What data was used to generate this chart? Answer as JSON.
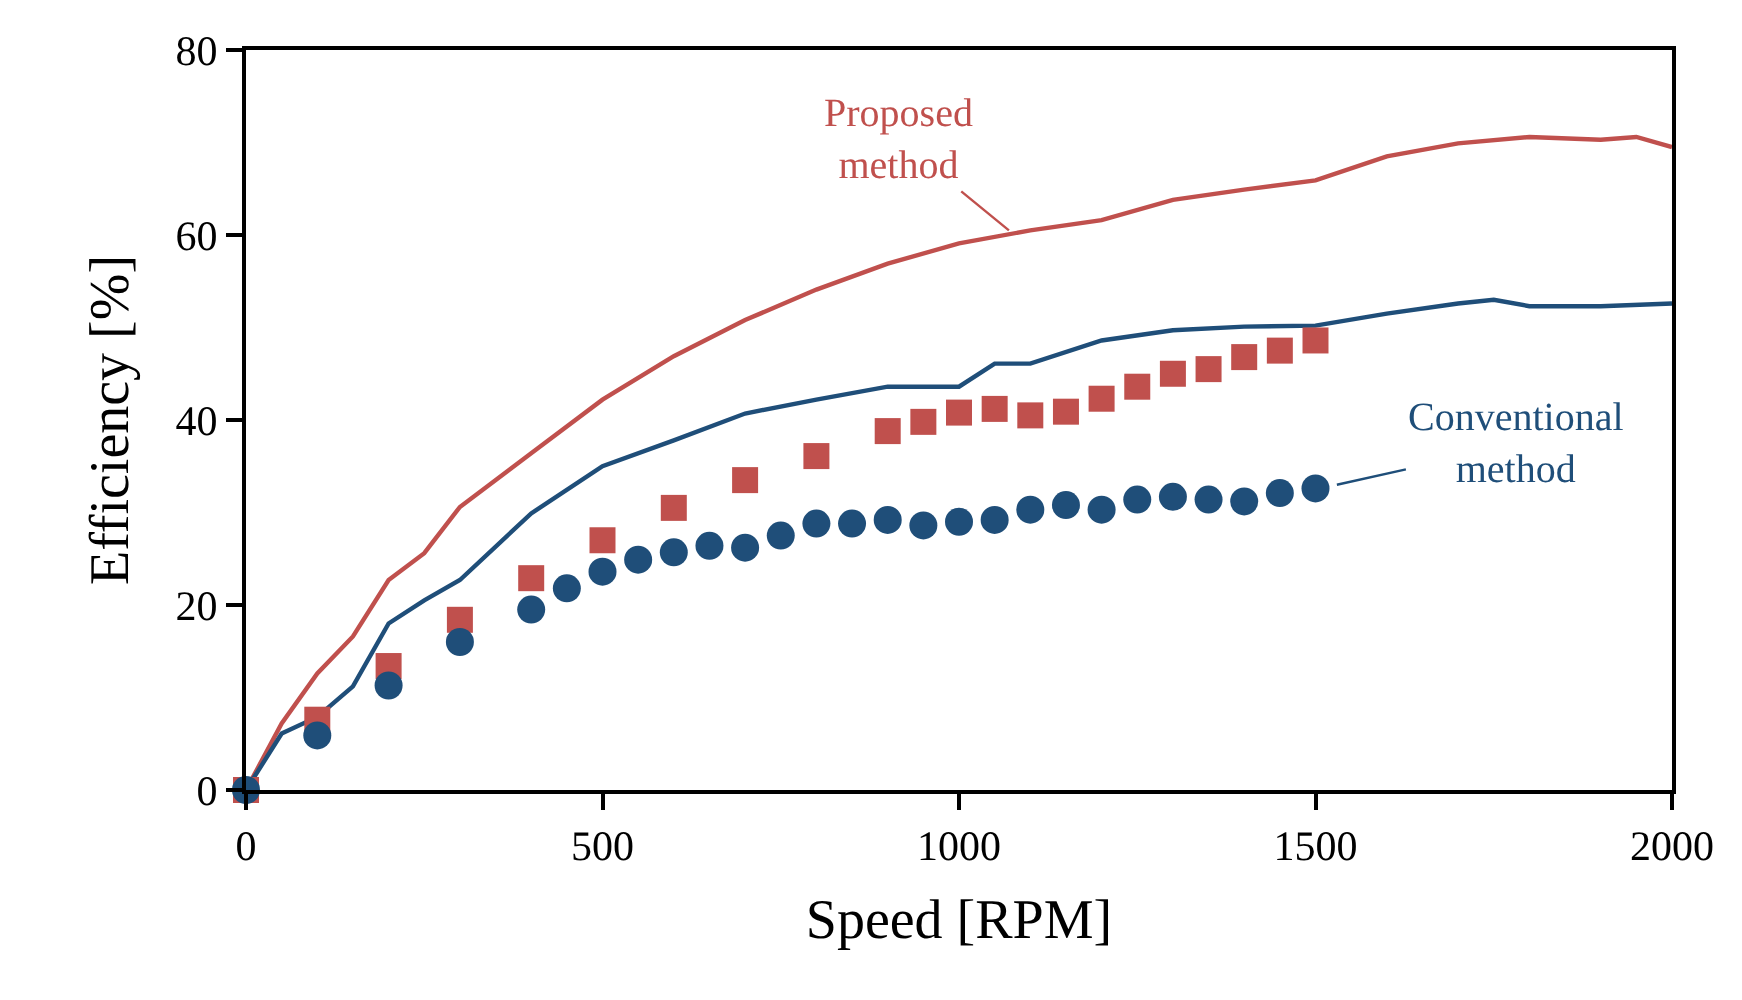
{
  "chart_data": {
    "type": "line",
    "xlabel": "Speed [RPM]",
    "ylabel": "Efficiency [%]",
    "xlim": [
      0,
      2000
    ],
    "xticks": [
      0,
      500,
      1000,
      1500,
      2000
    ],
    "ylim": [
      0,
      80
    ],
    "yticks": [
      0,
      20,
      40,
      60,
      80
    ],
    "series": [
      {
        "marker": "none",
        "line_style": "solid",
        "color": "#c0504d",
        "x": [
          0,
          50,
          100,
          150,
          200,
          250,
          300,
          400,
          500,
          600,
          700,
          800,
          900,
          1000,
          1100,
          1200,
          1300,
          1400,
          1500,
          1600,
          1700,
          1800,
          1900,
          1950,
          2000
        ],
        "values": [
          0,
          7.2,
          12.6,
          16.6,
          22.7,
          25.6,
          30.6,
          36.4,
          42.2,
          46.9,
          50.8,
          54.1,
          56.9,
          59.1,
          60.5,
          61.6,
          63.8,
          64.9,
          65.9,
          68.5,
          69.9,
          70.6,
          70.3,
          70.6,
          69.5
        ]
      },
      {
        "type": "line",
        "marker": "none",
        "line_style": "solid",
        "color": "#1f4e79",
        "x": [
          0,
          50,
          100,
          150,
          200,
          250,
          300,
          400,
          500,
          600,
          700,
          800,
          900,
          1000,
          1050,
          1100,
          1200,
          1300,
          1400,
          1500,
          1600,
          1700,
          1750,
          1800,
          1900,
          2000
        ],
        "values": [
          0,
          6.1,
          7.9,
          11.2,
          18.0,
          20.5,
          22.7,
          29.9,
          35.0,
          37.8,
          40.7,
          42.2,
          43.6,
          43.6,
          46.1,
          46.1,
          48.6,
          49.7,
          50.1,
          50.2,
          51.5,
          52.6,
          53.0,
          52.3,
          52.3,
          52.6
        ]
      },
      {
        "type": "scatter",
        "marker": "square",
        "color": "#c0504d",
        "x": [
          0,
          100,
          200,
          300,
          400,
          500,
          600,
          700,
          800,
          900,
          950,
          1000,
          1050,
          1100,
          1150,
          1200,
          1250,
          1300,
          1350,
          1400,
          1450,
          1500
        ],
        "values": [
          0,
          7.6,
          13.4,
          18.4,
          22.9,
          27.0,
          30.5,
          33.5,
          36.1,
          38.8,
          39.8,
          40.8,
          41.2,
          40.5,
          40.9,
          42.3,
          43.6,
          45.0,
          45.5,
          46.8,
          47.5,
          48.6
        ]
      },
      {
        "type": "scatter",
        "marker": "circle",
        "color": "#1f4e79",
        "x": [
          0,
          100,
          200,
          300,
          400,
          450,
          500,
          550,
          600,
          650,
          700,
          750,
          800,
          850,
          900,
          950,
          1000,
          1050,
          1100,
          1150,
          1200,
          1250,
          1300,
          1350,
          1400,
          1450,
          1500
        ],
        "values": [
          0,
          5.9,
          11.3,
          16.0,
          19.5,
          21.8,
          23.6,
          24.9,
          25.7,
          26.4,
          26.2,
          27.5,
          28.8,
          28.8,
          29.2,
          28.6,
          29.0,
          29.2,
          30.3,
          30.8,
          30.3,
          31.4,
          31.7,
          31.4,
          31.2,
          32.1,
          32.6
        ]
      }
    ],
    "annotations": [
      {
        "text": "Proposed\nmethod",
        "x": 1070,
        "y": 60.5
      },
      {
        "text": "Conventional\nmethod",
        "x": 1530,
        "y": 33
      }
    ]
  }
}
